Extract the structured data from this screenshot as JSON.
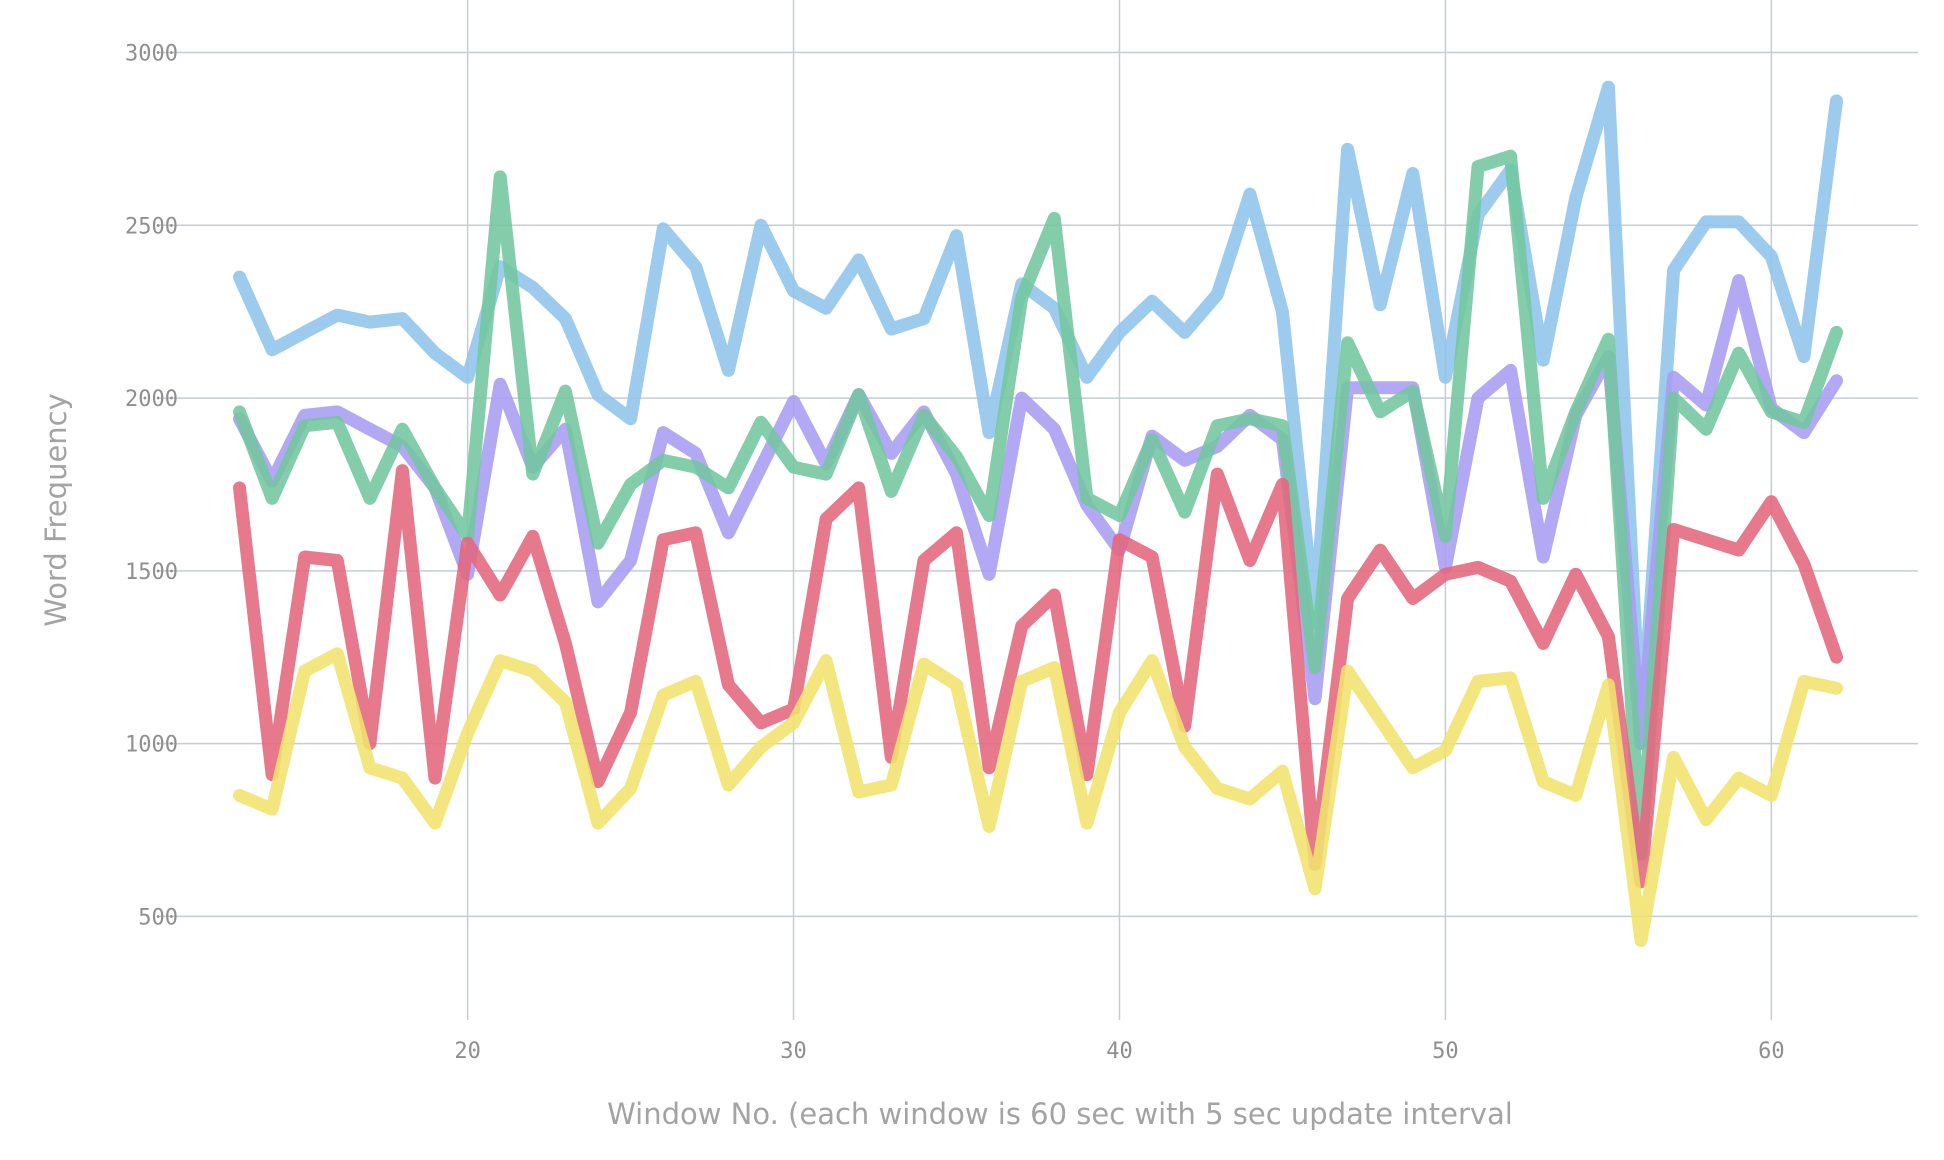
{
  "chart_data": {
    "type": "line",
    "title": "",
    "xlabel": "Window No. (each window is 60 sec with 5 sec update interval",
    "ylabel": "Word Frequency",
    "xlim": [
      10.5,
      64.5
    ],
    "ylim": [
      200,
      3100
    ],
    "xticks": [
      20,
      30,
      40,
      50,
      60
    ],
    "yticks": [
      500,
      1000,
      1500,
      2000,
      2500,
      3000
    ],
    "grid": true,
    "legend": "none",
    "x": [
      13,
      14,
      15,
      16,
      17,
      18,
      19,
      20,
      21,
      22,
      23,
      24,
      25,
      26,
      27,
      28,
      29,
      30,
      31,
      32,
      33,
      34,
      35,
      36,
      37,
      38,
      39,
      40,
      41,
      42,
      43,
      44,
      45,
      46,
      47,
      48,
      49,
      50,
      51,
      52,
      53,
      54,
      55,
      56,
      57,
      58,
      59,
      60,
      61,
      62
    ],
    "series": [
      {
        "color": "#8ec4ec",
        "values": [
          2350,
          2140,
          2190,
          2240,
          2220,
          2230,
          2130,
          2060,
          2380,
          2320,
          2230,
          2010,
          1940,
          2490,
          2380,
          2080,
          2500,
          2310,
          2260,
          2400,
          2200,
          2230,
          2470,
          1900,
          2330,
          2260,
          2060,
          2190,
          2280,
          2190,
          2300,
          2590,
          2250,
          1350,
          2720,
          2270,
          2650,
          2060,
          2530,
          2660,
          2110,
          2580,
          2900,
          1000,
          2370,
          2510,
          2510,
          2410,
          2120,
          2860
        ]
      },
      {
        "color": "#a89cf2",
        "values": [
          1940,
          1760,
          1950,
          1960,
          1910,
          1860,
          1740,
          1490,
          2040,
          1800,
          1910,
          1410,
          1530,
          1900,
          1840,
          1610,
          1800,
          1990,
          1810,
          2010,
          1840,
          1960,
          1780,
          1490,
          2000,
          1910,
          1690,
          1560,
          1890,
          1820,
          1860,
          1950,
          1880,
          1130,
          2030,
          2030,
          2030,
          1510,
          2000,
          2080,
          1540,
          1950,
          2120,
          1000,
          2060,
          1980,
          2340,
          1970,
          1900,
          2050
        ]
      },
      {
        "color": "#72c69f",
        "values": [
          1960,
          1710,
          1920,
          1930,
          1710,
          1910,
          1740,
          1600,
          2640,
          1780,
          2020,
          1580,
          1750,
          1820,
          1800,
          1740,
          1930,
          1800,
          1780,
          2010,
          1730,
          1950,
          1830,
          1660,
          2290,
          2520,
          1710,
          1660,
          1880,
          1670,
          1920,
          1940,
          1920,
          1220,
          2160,
          1960,
          2020,
          1600,
          2670,
          2700,
          1710,
          1960,
          2170,
          680,
          2000,
          1910,
          2130,
          1960,
          1930,
          2190
        ]
      },
      {
        "color": "#e4667d",
        "values": [
          1740,
          910,
          1540,
          1530,
          1000,
          1790,
          900,
          1580,
          1430,
          1600,
          1290,
          890,
          1090,
          1590,
          1610,
          1170,
          1060,
          1100,
          1650,
          1740,
          960,
          1530,
          1610,
          930,
          1340,
          1430,
          910,
          1590,
          1540,
          1050,
          1780,
          1530,
          1750,
          650,
          1420,
          1560,
          1420,
          1490,
          1510,
          1470,
          1290,
          1490,
          1310,
          600,
          1620,
          1590,
          1560,
          1700,
          1520,
          1250
        ]
      },
      {
        "color": "#f1e26d",
        "values": [
          850,
          810,
          1210,
          1260,
          930,
          900,
          770,
          1030,
          1240,
          1210,
          1120,
          770,
          870,
          1140,
          1180,
          880,
          990,
          1060,
          1240,
          860,
          880,
          1230,
          1170,
          760,
          1180,
          1220,
          770,
          1090,
          1240,
          990,
          870,
          840,
          920,
          580,
          1210,
          1070,
          930,
          980,
          1180,
          1190,
          890,
          850,
          1170,
          430,
          960,
          780,
          900,
          850,
          1180,
          1160
        ]
      }
    ]
  }
}
